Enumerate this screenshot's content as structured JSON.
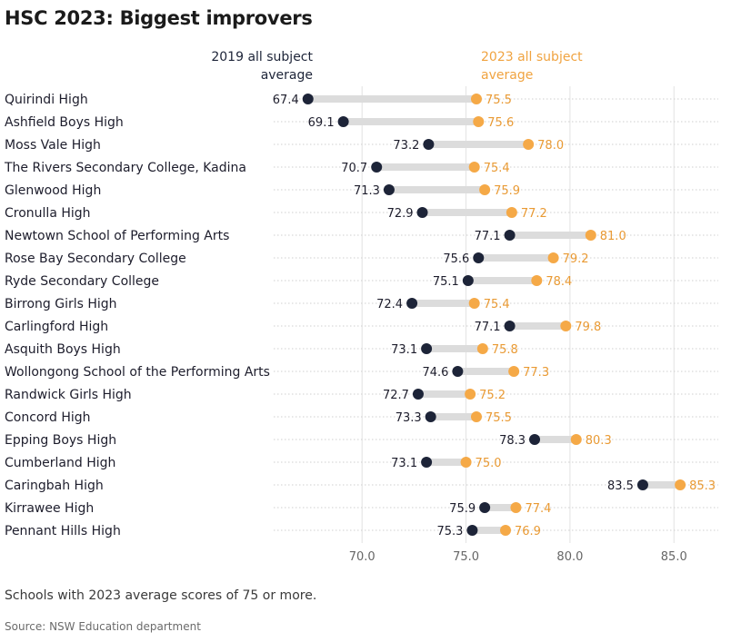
{
  "chart_data": {
    "type": "dumbbell",
    "title": "HSC 2023: Biggest improvers",
    "subtitle": "",
    "series": [
      {
        "name": "2019 all subject average",
        "color": "#1d2438"
      },
      {
        "name": "2023 all subject average",
        "color": "#f5a947"
      }
    ],
    "categories": [
      "Quirindi High",
      "Ashfield Boys High",
      "Moss Vale High",
      "The Rivers Secondary College, Kadina",
      "Glenwood High",
      "Cronulla High",
      "Newtown School of Performing Arts",
      "Rose Bay Secondary College",
      "Ryde Secondary College",
      "Birrong Girls High",
      "Carlingford High",
      "Asquith Boys High",
      "Wollongong School of the Performing Arts",
      "Randwick Girls High",
      "Concord High",
      "Epping Boys High",
      "Cumberland High",
      "Caringbah High",
      "Kirrawee High",
      "Pennant Hills High"
    ],
    "values_2019": [
      "67.4",
      "69.1",
      "73.2",
      "70.7",
      "71.3",
      "72.9",
      "77.1",
      "75.6",
      "75.1",
      "72.4",
      "77.1",
      "73.1",
      "74.6",
      "72.7",
      "73.3",
      "78.3",
      "73.1",
      "83.5",
      "75.9",
      "75.3"
    ],
    "values_2023": [
      "75.5",
      "75.6",
      "78.0",
      "75.4",
      "75.9",
      "77.2",
      "81.0",
      "79.2",
      "78.4",
      "75.4",
      "79.8",
      "75.8",
      "77.3",
      "75.2",
      "75.5",
      "80.3",
      "75.0",
      "85.3",
      "77.4",
      "76.9"
    ],
    "x_ticks": [
      "70.0",
      "75.0",
      "80.0",
      "85.0"
    ],
    "xlim": [
      65.75,
      87.0
    ],
    "grid": true,
    "note": "Schools with 2023 average scores of 75 or more.",
    "source": "Source: NSW Education department"
  }
}
